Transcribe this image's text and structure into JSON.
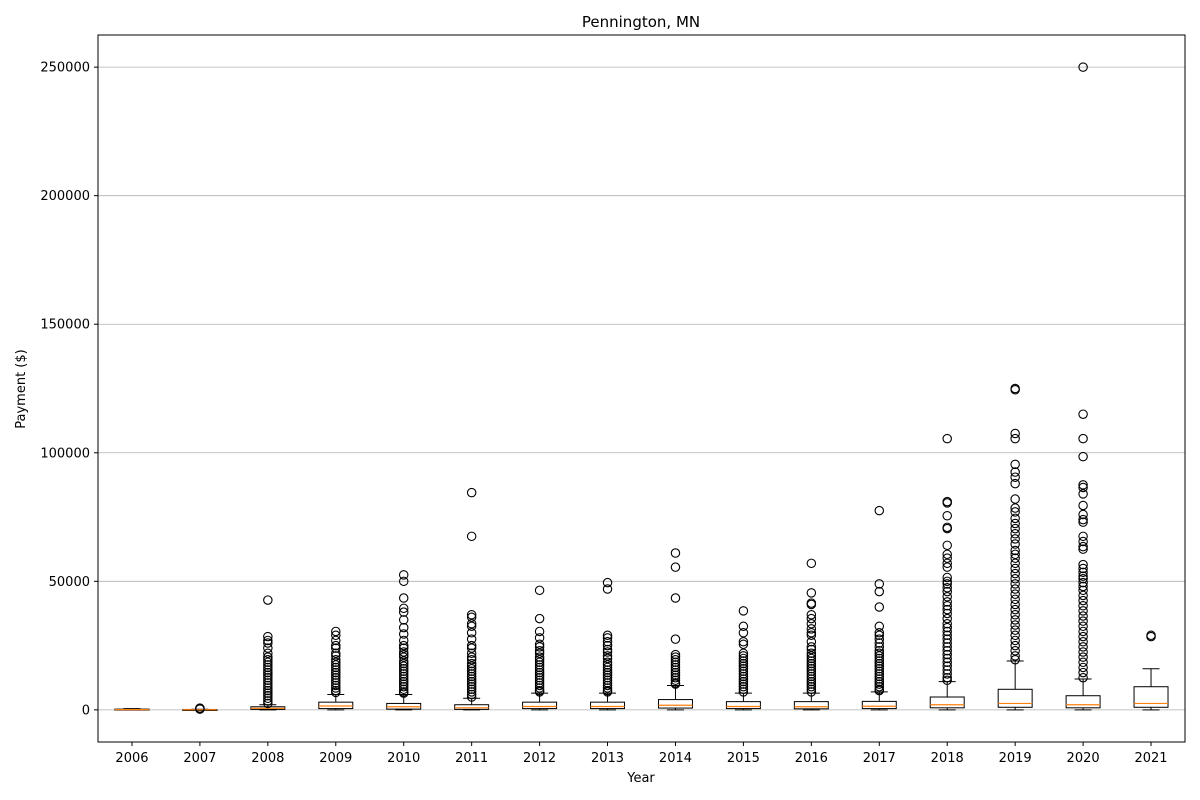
{
  "chart_data": {
    "type": "box",
    "title": "Pennington, MN",
    "xlabel": "Year",
    "ylabel": "Payment ($)",
    "ylim": [
      -12500,
      262500
    ],
    "yticks": [
      0,
      50000,
      100000,
      150000,
      200000,
      250000
    ],
    "grid": "y",
    "categories": [
      "2006",
      "2007",
      "2008",
      "2009",
      "2010",
      "2011",
      "2012",
      "2013",
      "2014",
      "2015",
      "2016",
      "2017",
      "2018",
      "2019",
      "2020",
      "2021"
    ],
    "boxes": [
      {
        "year": "2006",
        "whislo": 0,
        "q1": 0,
        "med": 100,
        "q3": 300,
        "whishi": 500,
        "fliers": []
      },
      {
        "year": "2007",
        "whislo": 0,
        "q1": 0,
        "med": 50,
        "q3": 150,
        "whishi": 250,
        "fliers": [
          300,
          500,
          700
        ]
      },
      {
        "year": "2008",
        "whislo": 0,
        "q1": 200,
        "med": 600,
        "q3": 1200,
        "whishi": 2000,
        "fliers": [
          42700,
          28500,
          27000,
          26000,
          24000,
          22000,
          20500,
          19500,
          18500,
          17500,
          16500,
          15500,
          14500,
          13500,
          12500,
          11500,
          10500,
          9500,
          8500,
          7500,
          6500,
          5500,
          4500,
          3500,
          2500
        ]
      },
      {
        "year": "2009",
        "whislo": 0,
        "q1": 500,
        "med": 1500,
        "q3": 3000,
        "whishi": 6000,
        "fliers": [
          30500,
          29000,
          27000,
          25000,
          24000,
          22000,
          21000,
          19500,
          18500,
          17500,
          16500,
          15500,
          14500,
          13500,
          12500,
          11500,
          10500,
          9500,
          8500,
          7500,
          6800
        ]
      },
      {
        "year": "2010",
        "whislo": 0,
        "q1": 300,
        "med": 1200,
        "q3": 2500,
        "whishi": 6000,
        "fliers": [
          52500,
          50000,
          43500,
          39500,
          38000,
          35000,
          32000,
          29500,
          27000,
          25000,
          24000,
          22500,
          21500,
          20500,
          19000,
          18000,
          17000,
          16000,
          15000,
          14000,
          13000,
          12000,
          11000,
          10000,
          9000,
          8000,
          7000,
          6500
        ]
      },
      {
        "year": "2011",
        "whislo": 0,
        "q1": 200,
        "med": 800,
        "q3": 2000,
        "whishi": 4500,
        "fliers": [
          84500,
          67500,
          37000,
          36000,
          33500,
          32500,
          30000,
          27500,
          25000,
          24000,
          22000,
          20500,
          19500,
          18000,
          17000,
          16000,
          15000,
          14000,
          13000,
          12000,
          11000,
          10000,
          9000,
          8000,
          7000,
          6000,
          5000
        ]
      },
      {
        "year": "2012",
        "whislo": 0,
        "q1": 500,
        "med": 1300,
        "q3": 3000,
        "whishi": 6500,
        "fliers": [
          46500,
          35500,
          30500,
          28000,
          25500,
          24500,
          23000,
          22000,
          20500,
          19500,
          18500,
          17500,
          16500,
          15500,
          14500,
          13500,
          12500,
          11500,
          10500,
          9500,
          8500,
          7500,
          7000
        ]
      },
      {
        "year": "2013",
        "whislo": 0,
        "q1": 500,
        "med": 1300,
        "q3": 3000,
        "whishi": 6500,
        "fliers": [
          49500,
          47000,
          29000,
          28000,
          26500,
          25000,
          23500,
          22500,
          21000,
          20000,
          18500,
          17500,
          16500,
          15500,
          14500,
          13500,
          12500,
          11500,
          10500,
          9500,
          8500,
          7500,
          7000
        ]
      },
      {
        "year": "2014",
        "whislo": 0,
        "q1": 700,
        "med": 1800,
        "q3": 4000,
        "whishi": 9500,
        "fliers": [
          61000,
          55500,
          43500,
          27500,
          21500,
          20500,
          19500,
          18500,
          17500,
          16500,
          15500,
          14500,
          13500,
          12500,
          11500,
          10500,
          10000
        ]
      },
      {
        "year": "2015",
        "whislo": 0,
        "q1": 500,
        "med": 1300,
        "q3": 3200,
        "whishi": 6500,
        "fliers": [
          38500,
          32500,
          30000,
          26500,
          25500,
          22000,
          21000,
          20000,
          19000,
          18000,
          17000,
          16000,
          15000,
          14000,
          13000,
          12000,
          11000,
          10000,
          9000,
          8000,
          7000
        ]
      },
      {
        "year": "2016",
        "whislo": 0,
        "q1": 400,
        "med": 1200,
        "q3": 3200,
        "whishi": 6500,
        "fliers": [
          57000,
          45500,
          41500,
          41000,
          37000,
          35500,
          33500,
          31500,
          30000,
          29000,
          26500,
          24500,
          23500,
          22000,
          21000,
          20000,
          19000,
          18000,
          17000,
          16000,
          15000,
          14000,
          13000,
          12000,
          11000,
          10000,
          9000,
          8000,
          7000
        ]
      },
      {
        "year": "2017",
        "whislo": 0,
        "q1": 500,
        "med": 1400,
        "q3": 3300,
        "whishi": 7000,
        "fliers": [
          77500,
          49000,
          46000,
          40000,
          32500,
          30000,
          29000,
          27500,
          26000,
          24500,
          23000,
          22000,
          21000,
          20000,
          19000,
          18000,
          17000,
          16000,
          15000,
          14000,
          13000,
          12000,
          11000,
          10000,
          9000,
          8000,
          7500
        ]
      },
      {
        "year": "2018",
        "whislo": 0,
        "q1": 800,
        "med": 2000,
        "q3": 5000,
        "whishi": 11000,
        "fliers": [
          105500,
          81000,
          80500,
          75500,
          71000,
          70500,
          64000,
          60500,
          59000,
          57000,
          55500,
          51500,
          50000,
          49000,
          47500,
          46000,
          44000,
          42000,
          40500,
          39000,
          37500,
          35500,
          33500,
          32000,
          30500,
          29000,
          27500,
          26000,
          24500,
          23000,
          21500,
          20000,
          18500,
          17000,
          15500,
          14000,
          12500,
          11500
        ]
      },
      {
        "year": "2019",
        "whislo": 0,
        "q1": 1000,
        "med": 2500,
        "q3": 8000,
        "whishi": 19000,
        "fliers": [
          125000,
          124500,
          107500,
          105500,
          95500,
          92500,
          90500,
          88000,
          82000,
          78500,
          77000,
          74500,
          72500,
          70500,
          68500,
          66500,
          64500,
          62000,
          60500,
          59000,
          57000,
          55000,
          53000,
          51000,
          49000,
          47000,
          45000,
          43000,
          41000,
          39000,
          37000,
          35000,
          33000,
          31000,
          29000,
          27000,
          25000,
          23000,
          21000,
          19500
        ]
      },
      {
        "year": "2020",
        "whislo": 0,
        "q1": 800,
        "med": 2000,
        "q3": 5500,
        "whishi": 12000,
        "fliers": [
          250000,
          115000,
          105500,
          98500,
          87500,
          86500,
          84000,
          79500,
          76000,
          74000,
          73000,
          67500,
          65500,
          63500,
          62500,
          56500,
          55000,
          53500,
          52000,
          51000,
          49500,
          48000,
          46500,
          44500,
          42500,
          40500,
          38500,
          36500,
          34500,
          32500,
          30500,
          28500,
          26500,
          24500,
          22500,
          20500,
          18500,
          16500,
          14500,
          12500
        ]
      },
      {
        "year": "2021",
        "whislo": 0,
        "q1": 1000,
        "med": 2500,
        "q3": 9000,
        "whishi": 16000,
        "fliers": [
          29000,
          28500
        ]
      }
    ],
    "colors": {
      "box": "#000000",
      "median": "#ff7f0e",
      "grid": "#b0b0b0",
      "flier": "#000000"
    }
  }
}
